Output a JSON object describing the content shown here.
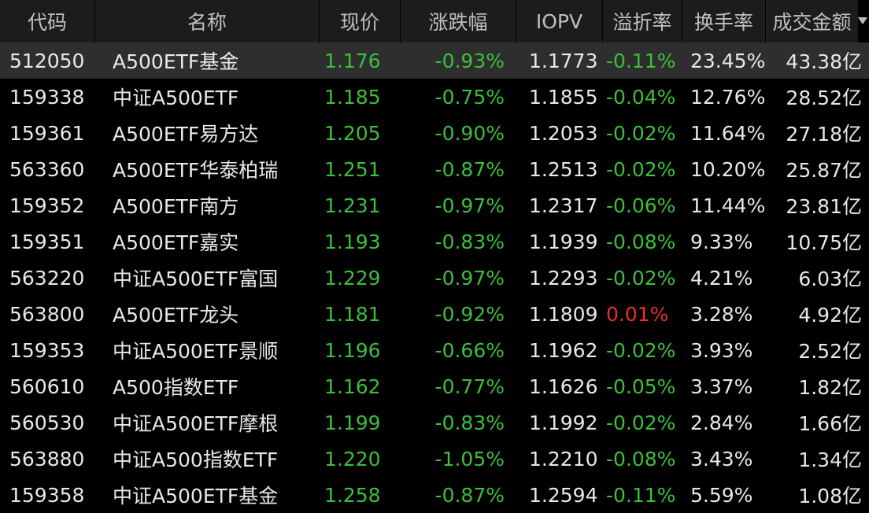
{
  "table": {
    "header": [
      "代码",
      "名称",
      "现价",
      "涨跌幅",
      "IOPV",
      "溢折率",
      "换手率",
      "成交金额"
    ],
    "rows": [
      [
        "512050",
        "A500ETF基金",
        "1.176",
        "-0.93%",
        "1.1773",
        "-0.11%",
        "23.45%",
        "43.38亿"
      ],
      [
        "159338",
        "中证A500ETF",
        "1.185",
        "-0.75%",
        "1.1855",
        "-0.04%",
        "12.76%",
        "28.52亿"
      ],
      [
        "159361",
        "A500ETF易方达",
        "1.205",
        "-0.90%",
        "1.2053",
        "-0.02%",
        "11.64%",
        "27.18亿"
      ],
      [
        "563360",
        "A500ETF华泰柏瑞",
        "1.251",
        "-0.87%",
        "1.2513",
        "-0.02%",
        "10.20%",
        "25.87亿"
      ],
      [
        "159352",
        "A500ETF南方",
        "1.231",
        "-0.97%",
        "1.2317",
        "-0.06%",
        "11.44%",
        "23.81亿"
      ],
      [
        "159351",
        "A500ETF嘉实",
        "1.193",
        "-0.83%",
        "1.1939",
        "-0.08%",
        "9.33%",
        "10.75亿"
      ],
      [
        "563220",
        "中证A500ETF富国",
        "1.229",
        "-0.97%",
        "1.2293",
        "-0.02%",
        "4.21%",
        "6.03亿"
      ],
      [
        "563800",
        "A500ETF龙头",
        "1.181",
        "-0.92%",
        "1.1809",
        "0.01%",
        "3.28%",
        "4.92亿"
      ],
      [
        "159353",
        "中证A500ETF景顺",
        "1.196",
        "-0.66%",
        "1.1962",
        "-0.02%",
        "3.93%",
        "2.52亿"
      ],
      [
        "560610",
        "A500指数ETF",
        "1.162",
        "-0.77%",
        "1.1626",
        "-0.05%",
        "3.37%",
        "1.82亿"
      ],
      [
        "560530",
        "中证A500ETF摩根",
        "1.199",
        "-0.83%",
        "1.1992",
        "-0.02%",
        "2.84%",
        "1.66亿"
      ],
      [
        "563880",
        "中证A500指数ETF",
        "1.220",
        "-1.05%",
        "1.2210",
        "-0.08%",
        "3.43%",
        "1.34亿"
      ],
      [
        "159358",
        "中证A500ETF基金",
        "1.258",
        "-0.87%",
        "1.2594",
        "-0.11%",
        "5.59%",
        "1.08亿"
      ]
    ]
  }
}
